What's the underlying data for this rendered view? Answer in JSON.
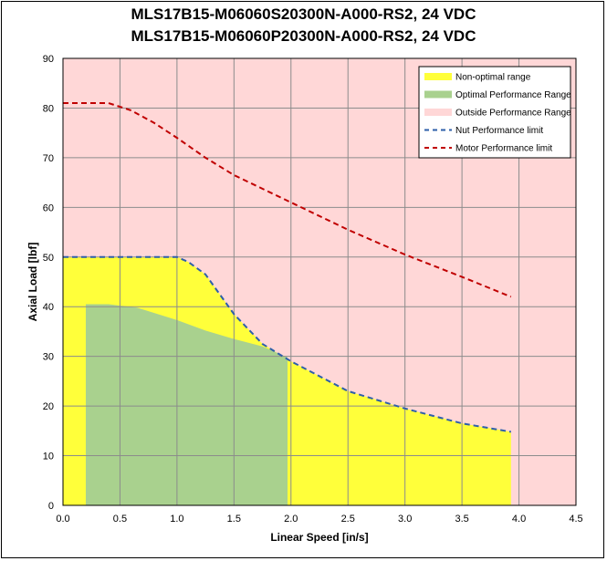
{
  "chart_data": {
    "type": "area",
    "title": "MLS17B15-M06060S20300N-A000-RS2, 24 VDC",
    "subtitle": "MLS17B15-M06060P20300N-A000-RS2, 24 VDC",
    "xlabel": "Linear Speed [in/s]",
    "ylabel": "Axial Load [lbf]",
    "xlim": [
      0,
      4.5
    ],
    "ylim": [
      0,
      90
    ],
    "xticks": [
      "0.0",
      "0.5",
      "1.0",
      "1.5",
      "2.0",
      "2.5",
      "3.0",
      "3.5",
      "4.0",
      "4.5"
    ],
    "yticks": [
      "0",
      "10",
      "20",
      "30",
      "40",
      "50",
      "60",
      "70",
      "80",
      "90"
    ],
    "grid": true,
    "legend_position": "top-right",
    "colors": {
      "background": "#ffd7d7",
      "non_optimal": "#ffff3a",
      "optimal": "#a9d18e",
      "nut_line": "#2e5faa",
      "motor_line": "#c00000",
      "grid": "#8c8c8c"
    },
    "series": [
      {
        "name": "Non-optimal range",
        "kind": "area",
        "x": [
          0.0,
          0.2,
          0.5,
          0.8,
          1.0,
          1.1,
          1.25,
          1.5,
          1.75,
          2.0,
          2.5,
          3.0,
          3.5,
          3.93
        ],
        "y": [
          50,
          50,
          50,
          50,
          50,
          49,
          46.5,
          38.5,
          32.5,
          29,
          23,
          19.5,
          16.5,
          14.8
        ]
      },
      {
        "name": "Optimal Performance Range",
        "kind": "area",
        "x": [
          0.2,
          0.4,
          0.65,
          1.0,
          1.25,
          1.5,
          1.75,
          1.97
        ],
        "y": [
          40.5,
          40.5,
          39.8,
          37.3,
          35.2,
          33.5,
          32,
          29.8
        ]
      },
      {
        "name": "Outside Performance Range",
        "kind": "background"
      },
      {
        "name": "Nut Performance limit",
        "kind": "dashed-line",
        "x": [
          0.0,
          0.2,
          0.5,
          0.8,
          1.0,
          1.1,
          1.25,
          1.5,
          1.75,
          2.0,
          2.5,
          3.0,
          3.5,
          3.93
        ],
        "y": [
          50,
          50,
          50,
          50,
          50,
          49,
          46.5,
          38.5,
          32.5,
          29,
          23,
          19.5,
          16.5,
          14.8
        ]
      },
      {
        "name": "Motor Performance limit",
        "kind": "dashed-line",
        "x": [
          0.0,
          0.4,
          0.6,
          0.8,
          1.0,
          1.25,
          1.5,
          2.0,
          2.5,
          3.0,
          3.5,
          3.93
        ],
        "y": [
          81,
          81,
          79.5,
          77,
          74,
          70,
          66.5,
          61,
          55.5,
          50.5,
          46,
          42
        ]
      }
    ]
  }
}
